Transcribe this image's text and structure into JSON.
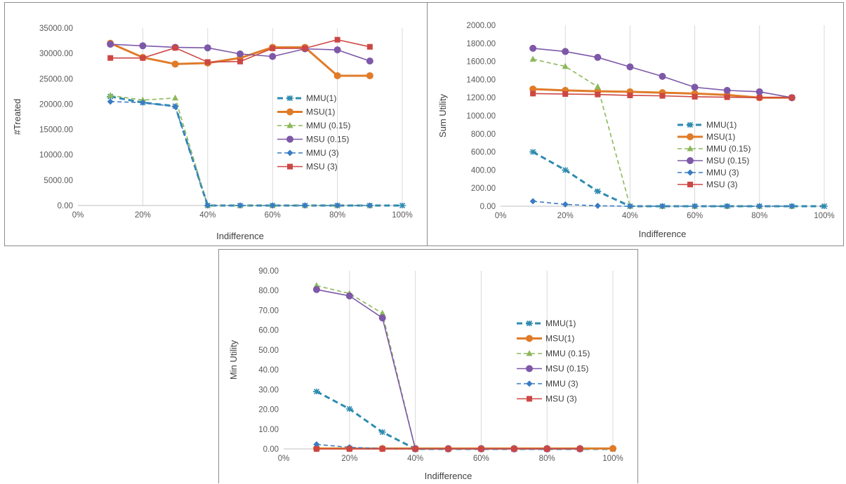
{
  "chart_data": [
    {
      "type": "line",
      "title": "",
      "xlabel": "Indifference",
      "ylabel": "#Treated",
      "xlim": [
        0,
        100
      ],
      "ylim": [
        0,
        35000
      ],
      "x_ticks": [
        "0%",
        "20%",
        "40%",
        "60%",
        "80%",
        "100%"
      ],
      "y_ticks": [
        "0.00",
        "5000.00",
        "10000.00",
        "15000.00",
        "20000.00",
        "25000.00",
        "30000.00",
        "35000.00"
      ],
      "grid": "vertical",
      "legend_position": "right",
      "series": [
        {
          "name": "MMU(1)",
          "x": [
            10,
            20,
            30,
            40,
            50,
            60,
            70,
            80,
            90,
            100
          ],
          "values": [
            21500,
            20300,
            19600,
            0,
            0,
            0,
            0,
            0,
            0,
            0
          ]
        },
        {
          "name": "MSU(1)",
          "x": [
            10,
            20,
            30,
            40,
            50,
            60,
            70,
            80,
            90
          ],
          "values": [
            32000,
            29200,
            27900,
            28100,
            29100,
            31200,
            31200,
            25600,
            25600
          ]
        },
        {
          "name": "MMU (0.15)",
          "x": [
            10,
            20,
            30,
            40,
            50,
            60,
            70,
            80,
            90
          ],
          "values": [
            21700,
            20800,
            21200,
            0,
            0,
            0,
            0,
            0,
            0
          ]
        },
        {
          "name": "MSU (0.15)",
          "x": [
            10,
            20,
            30,
            40,
            50,
            60,
            70,
            80,
            90
          ],
          "values": [
            31800,
            31500,
            31200,
            31100,
            29900,
            29400,
            30900,
            30700,
            28500
          ]
        },
        {
          "name": "MMU (3)",
          "x": [
            10,
            20,
            30,
            40,
            50,
            60,
            70,
            80,
            90
          ],
          "values": [
            20500,
            20300,
            19500,
            0,
            0,
            0,
            0,
            0,
            0
          ]
        },
        {
          "name": "MSU (3)",
          "x": [
            10,
            20,
            30,
            40,
            50,
            60,
            70,
            80,
            90
          ],
          "values": [
            29100,
            29100,
            31100,
            28300,
            28400,
            31000,
            31000,
            32700,
            31300
          ]
        }
      ]
    },
    {
      "type": "line",
      "title": "",
      "xlabel": "Indifference",
      "ylabel": "Sum Utility",
      "xlim": [
        0,
        100
      ],
      "ylim": [
        0,
        2000
      ],
      "x_ticks": [
        "0%",
        "20%",
        "40%",
        "60%",
        "80%",
        "100%"
      ],
      "y_ticks": [
        "0.00",
        "200.00",
        "400.00",
        "600.00",
        "800.00",
        "1000.00",
        "1200.00",
        "1400.00",
        "1600.00",
        "1800.00",
        "2000.00"
      ],
      "grid": "vertical",
      "legend_position": "right",
      "series": [
        {
          "name": "MMU(1)",
          "x": [
            10,
            20,
            30,
            40,
            50,
            60,
            70,
            80,
            90,
            100
          ],
          "values": [
            600,
            400,
            165,
            0,
            0,
            0,
            0,
            0,
            0,
            0
          ]
        },
        {
          "name": "MSU(1)",
          "x": [
            10,
            20,
            30,
            40,
            50,
            60,
            70,
            80,
            90
          ],
          "values": [
            1295,
            1280,
            1270,
            1265,
            1255,
            1245,
            1230,
            1200,
            1200
          ]
        },
        {
          "name": "MMU (0.15)",
          "x": [
            10,
            20,
            30,
            40,
            50,
            60,
            70,
            80,
            90
          ],
          "values": [
            1625,
            1545,
            1320,
            0,
            0,
            0,
            0,
            0,
            0
          ]
        },
        {
          "name": "MSU (0.15)",
          "x": [
            10,
            20,
            30,
            40,
            50,
            60,
            70,
            80,
            90
          ],
          "values": [
            1745,
            1710,
            1645,
            1540,
            1435,
            1315,
            1280,
            1265,
            1200
          ]
        },
        {
          "name": "MMU (3)",
          "x": [
            10,
            20,
            30,
            40,
            50,
            60,
            70,
            80,
            90
          ],
          "values": [
            55,
            20,
            5,
            0,
            0,
            0,
            0,
            0,
            0
          ]
        },
        {
          "name": "MSU (3)",
          "x": [
            10,
            20,
            30,
            40,
            50,
            60,
            70,
            80,
            90
          ],
          "values": [
            1245,
            1240,
            1235,
            1225,
            1220,
            1210,
            1205,
            1200,
            1200
          ]
        }
      ]
    },
    {
      "type": "line",
      "title": "",
      "xlabel": "Indifference",
      "ylabel": "Min Utility",
      "xlim": [
        0,
        100
      ],
      "ylim": [
        0,
        90
      ],
      "x_ticks": [
        "0%",
        "20%",
        "40%",
        "60%",
        "80%",
        "100%"
      ],
      "y_ticks": [
        "0.00",
        "10.00",
        "20.00",
        "30.00",
        "40.00",
        "50.00",
        "60.00",
        "70.00",
        "80.00",
        "90.00"
      ],
      "grid": "vertical",
      "legend_position": "right",
      "series": [
        {
          "name": "MMU(1)",
          "x": [
            10,
            20,
            30,
            40,
            50,
            60,
            70,
            80,
            90,
            100
          ],
          "values": [
            29,
            20.2,
            8.5,
            0,
            0,
            0,
            0,
            0,
            0,
            0
          ]
        },
        {
          "name": "MSU(1)",
          "x": [
            10,
            20,
            30,
            40,
            50,
            60,
            70,
            80,
            90,
            100
          ],
          "values": [
            0.2,
            0.2,
            0.2,
            0.2,
            0.2,
            0.2,
            0.2,
            0.2,
            0.2,
            0.2
          ]
        },
        {
          "name": "MMU (0.15)",
          "x": [
            10,
            20,
            30,
            40,
            50,
            60,
            70,
            80,
            90
          ],
          "values": [
            82.5,
            78.5,
            68.5,
            0,
            0,
            0,
            0,
            0,
            0
          ]
        },
        {
          "name": "MSU (0.15)",
          "x": [
            10,
            20,
            30,
            40,
            50,
            60,
            70,
            80,
            90
          ],
          "values": [
            80.5,
            77.3,
            66.2,
            0,
            0,
            0,
            0,
            0,
            0
          ]
        },
        {
          "name": "MMU (3)",
          "x": [
            10,
            20,
            30,
            40,
            50,
            60,
            70,
            80,
            90
          ],
          "values": [
            2.3,
            0.8,
            0.2,
            0,
            0,
            0,
            0,
            0,
            0
          ]
        },
        {
          "name": "MSU (3)",
          "x": [
            10,
            20,
            30,
            40,
            50,
            60,
            70,
            80,
            90
          ],
          "values": [
            0,
            0,
            0,
            0,
            0,
            0,
            0,
            0,
            0
          ]
        }
      ]
    }
  ],
  "series_styles": [
    {
      "name": "MMU(1)",
      "color": "#2E8BAF",
      "dash": "dashed",
      "marker": "asterisk",
      "width": "thick"
    },
    {
      "name": "MSU(1)",
      "color": "#E07B28",
      "dash": "solid",
      "marker": "circle",
      "width": "thick"
    },
    {
      "name": "MMU (0.15)",
      "color": "#8DB85A",
      "dash": "dashed",
      "marker": "triangle",
      "width": "normal"
    },
    {
      "name": "MSU (0.15)",
      "color": "#7E58A8",
      "dash": "solid",
      "marker": "circle",
      "width": "normal"
    },
    {
      "name": "MMU (3)",
      "color": "#3A7CC2",
      "dash": "dashed",
      "marker": "diamond",
      "width": "normal"
    },
    {
      "name": "MSU (3)",
      "color": "#CC4743",
      "dash": "solid",
      "marker": "square",
      "width": "normal"
    }
  ]
}
